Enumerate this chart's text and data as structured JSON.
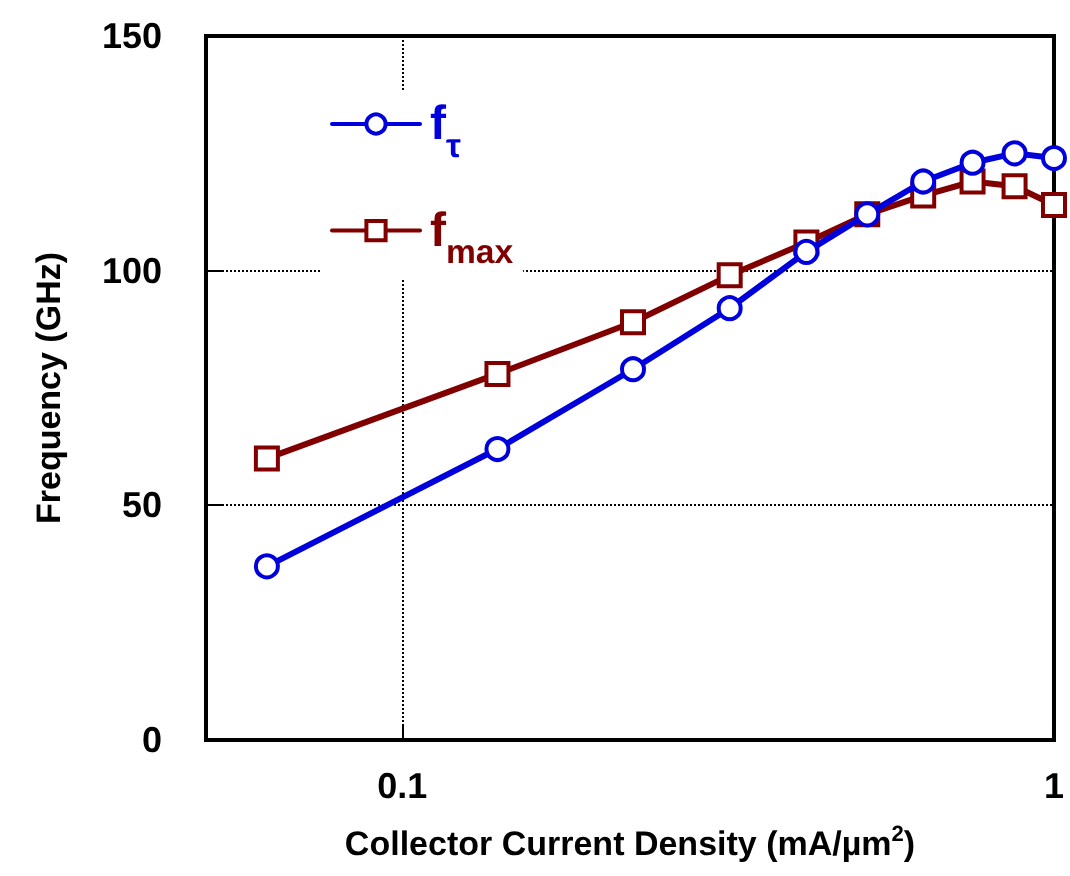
{
  "chart_data": {
    "type": "line",
    "xlabel": "Collector Current Density (mA/µm$^{2}$)",
    "ylabel": "Frequency (GHz)",
    "log": "x",
    "xlim": [
      0.05,
      1
    ],
    "xticks": [
      0.1,
      1
    ],
    "ylim": [
      0,
      150
    ],
    "yticks": [
      0,
      50,
      100,
      150
    ],
    "grid": true,
    "legend": "top left",
    "line_style": "solid",
    "x": [
      0.062,
      0.14,
      0.226,
      0.318,
      0.417,
      0.517,
      0.63,
      0.75,
      0.87,
      1.0
    ],
    "series": [
      {
        "name": "f$_{τ}$",
        "color": "#0000dd",
        "marker": "circle",
        "values": [
          37,
          62,
          79,
          92,
          104,
          112,
          119,
          123,
          125,
          124
        ]
      },
      {
        "name": "f$_{max}$",
        "color": "#800000",
        "marker": "square",
        "values": [
          60,
          78,
          89,
          99,
          106,
          112,
          116,
          119,
          118,
          114
        ]
      }
    ]
  }
}
